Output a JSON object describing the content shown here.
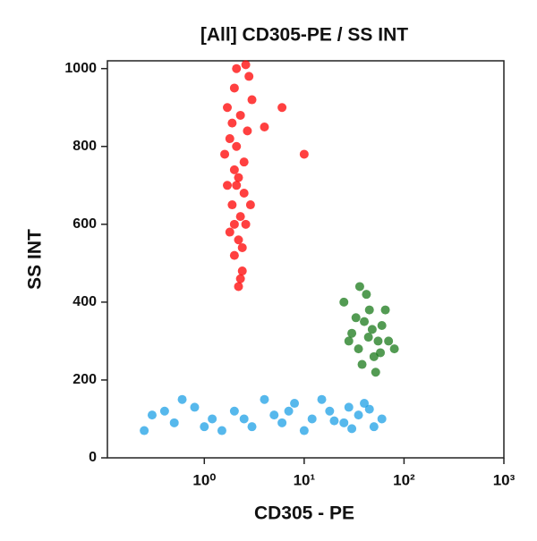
{
  "chart_data": {
    "type": "scatter",
    "title": "[All] CD305-PE / SS INT",
    "x_label": "CD305 - PE",
    "y_label": "SS INT",
    "x_scale": "log",
    "xlim": [
      0.107,
      1000
    ],
    "xticks": [
      {
        "value": 1,
        "label": "10⁰"
      },
      {
        "value": 10,
        "label": "10¹"
      },
      {
        "value": 100,
        "label": "10²"
      },
      {
        "value": 1000,
        "label": "10³"
      }
    ],
    "ylim": [
      0,
      1020
    ],
    "yticks": [
      0,
      200,
      400,
      600,
      800,
      1000
    ],
    "series": [
      {
        "color": "#ff0000",
        "x": [
          2.0,
          2.3,
          1.8,
          2.5,
          2.1,
          1.9,
          2.6,
          2.2,
          2.0,
          2.4,
          1.7,
          2.8,
          2.1,
          2.3,
          1.8,
          2.5,
          2.0,
          2.7,
          1.6,
          2.2,
          3.0,
          1.9,
          2.4,
          2.1,
          2.6,
          1.7,
          2.3,
          2.9,
          2.0,
          2.2,
          4,
          6,
          10
        ],
        "values": [
          950,
          880,
          820,
          760,
          700,
          650,
          600,
          560,
          520,
          480,
          900,
          980,
          1000,
          620,
          580,
          680,
          740,
          840,
          780,
          440,
          920,
          860,
          540,
          800,
          1010,
          700,
          460,
          650,
          600,
          720,
          850,
          900,
          780
        ]
      },
      {
        "color": "#1a7a1a",
        "x": [
          40,
          30,
          55,
          45,
          35,
          60,
          25,
          50,
          42,
          70,
          38,
          48,
          33,
          65,
          28,
          52,
          80,
          44,
          36,
          58
        ],
        "values": [
          350,
          320,
          300,
          380,
          280,
          340,
          400,
          260,
          420,
          300,
          240,
          330,
          360,
          380,
          300,
          220,
          280,
          310,
          440,
          270
        ]
      },
      {
        "color": "#1ea0e6",
        "x": [
          0.3,
          0.5,
          0.8,
          1.2,
          2,
          3,
          5,
          8,
          12,
          18,
          25,
          35,
          50,
          0.25,
          0.6,
          1.5,
          4,
          10,
          15,
          28,
          40,
          60,
          2.5,
          6,
          0.4,
          1,
          20,
          45,
          7,
          30
        ],
        "values": [
          110,
          90,
          130,
          100,
          120,
          80,
          110,
          140,
          100,
          120,
          90,
          110,
          80,
          70,
          150,
          70,
          150,
          70,
          150,
          130,
          140,
          100,
          100,
          90,
          120,
          80,
          95,
          125,
          120,
          75
        ]
      }
    ]
  }
}
